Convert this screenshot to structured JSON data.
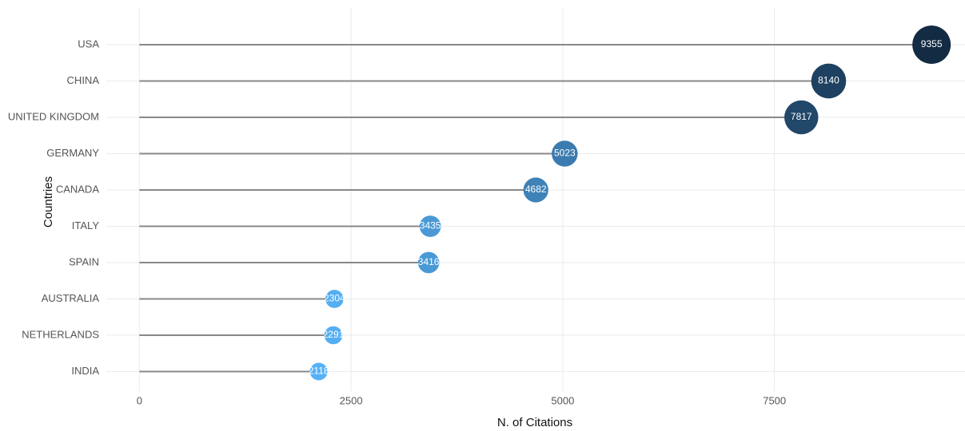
{
  "chart_data": {
    "type": "lollipop",
    "xlabel": "N. of Citations",
    "ylabel": "Countries",
    "categories": [
      "USA",
      "CHINA",
      "UNITED KINGDOM",
      "GERMANY",
      "CANADA",
      "ITALY",
      "SPAIN",
      "AUSTRALIA",
      "NETHERLANDS",
      "INDIA"
    ],
    "values": [
      9355,
      8140,
      7817,
      5023,
      4682,
      3435,
      3416,
      2304,
      2291,
      2118
    ],
    "xlim": [
      -390,
      9750
    ],
    "xticks": [
      0,
      2500,
      5000,
      7500
    ],
    "grid": true,
    "line_color": "#888888",
    "color_low": "#56b1f7",
    "color_high": "#132b43"
  }
}
